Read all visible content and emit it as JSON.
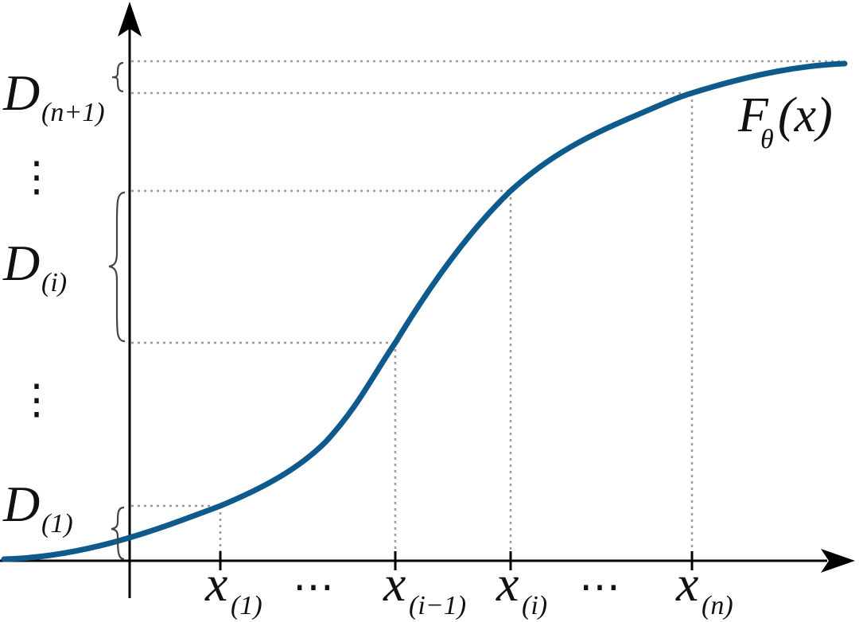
{
  "colors": {
    "curve": "#0f5a8c",
    "axis": "#000000",
    "guides": "#9a9a9a",
    "brace": "#444444"
  },
  "curve_label": {
    "main": "F",
    "sub": "θ",
    "arg": "(x)"
  },
  "y_labels": {
    "d_top": {
      "main": "D",
      "sub": "(n+1)"
    },
    "d_mid": {
      "main": "D",
      "sub": "(i)"
    },
    "d_low": {
      "main": "D",
      "sub": "(1)"
    },
    "vdots_upper": "⋮",
    "vdots_lower": "⋮"
  },
  "x_labels": {
    "x1": {
      "main": "x",
      "sub": "(1)"
    },
    "xim1": {
      "main": "x",
      "sub": "(i−1)"
    },
    "xi": {
      "main": "x",
      "sub": "(i)"
    },
    "xn": {
      "main": "x",
      "sub": "(n)"
    },
    "dots_left": "⋯",
    "dots_right": "⋯"
  }
}
